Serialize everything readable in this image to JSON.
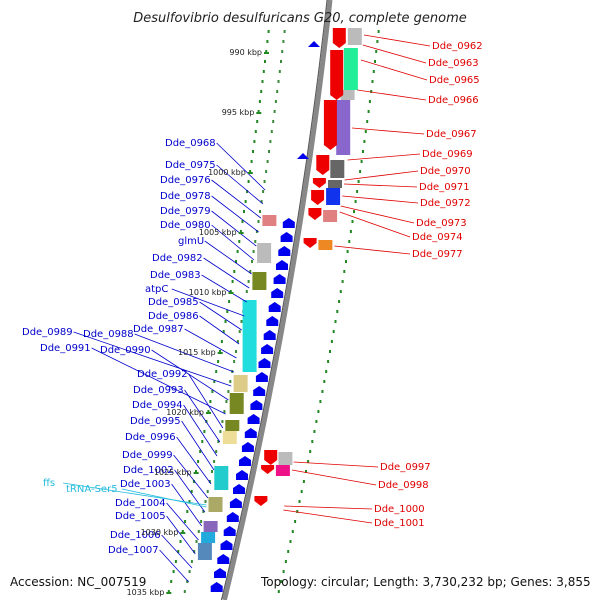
{
  "title": "Desulfovibrio desulfuricans G20, complete genome",
  "footer": {
    "accession": "Accession: NC_007519",
    "topology": "Topology: circular; Length: 3,730,232 bp; Genes: 3,855"
  },
  "colors": {
    "forward_label": "#e00000",
    "reverse_label": "#0000cc",
    "rna_label": "#22bbdd",
    "backbone": "#888888",
    "ticks": "#228822"
  },
  "kbp_markers": [
    "990 kbp",
    "995 kbp",
    "1000 kbp",
    "1005 kbp",
    "1010 kbp",
    "1015 kbp",
    "1020 kbp",
    "1025 kbp",
    "1030 kbp",
    "1035 kbp"
  ],
  "reverse_labels": [
    "Dde_0968",
    "Dde_0975",
    "Dde_0976",
    "Dde_0978",
    "Dde_0979",
    "Dde_0980",
    "glmU",
    "Dde_0982",
    "Dde_0983",
    "atpC",
    "Dde_0985",
    "Dde_0986",
    "Dde_0987",
    "Dde_0988",
    "Dde_0989",
    "Dde_0990",
    "Dde_0991",
    "Dde_0992",
    "Dde_0993",
    "Dde_0994",
    "Dde_0995",
    "Dde_0996",
    "Dde_0999",
    "Dde_1002",
    "Dde_1003",
    "Dde_1004",
    "Dde_1005",
    "Dde_1006",
    "Dde_1007"
  ],
  "rna_labels": [
    "ffs",
    "tRNA-Ser5"
  ],
  "forward_labels": [
    "Dde_0962",
    "Dde_0963",
    "Dde_0965",
    "Dde_0966",
    "Dde_0967",
    "Dde_0969",
    "Dde_0970",
    "Dde_0971",
    "Dde_0972",
    "Dde_0973",
    "Dde_0974",
    "Dde_0977",
    "Dde_0997",
    "Dde_0998",
    "Dde_1000",
    "Dde_1001"
  ]
}
